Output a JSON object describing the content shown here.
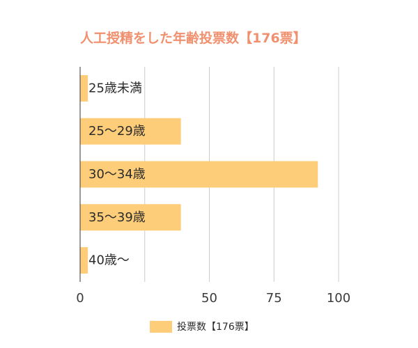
{
  "chart_data": {
    "type": "bar",
    "orientation": "horizontal",
    "title": "人工授精をした年齢投票数【176票】",
    "categories": [
      "25歳未満",
      "25～29歳",
      "30～34歳",
      "35～39歳",
      "40歳～"
    ],
    "series": [
      {
        "name": "投票数【176票】",
        "values": [
          3,
          39,
          92,
          39,
          3
        ]
      }
    ],
    "xlim": [
      0,
      100
    ],
    "x_ticks": [
      0,
      50,
      75,
      100
    ],
    "x_tick_labels": [
      "0",
      "50",
      "75",
      "100"
    ],
    "grid": true,
    "legend_position": "bottom",
    "colors": {
      "bar": "#fdcd79",
      "title": "#f0906f",
      "grid": "#cccccc",
      "axis": "#333333"
    }
  }
}
